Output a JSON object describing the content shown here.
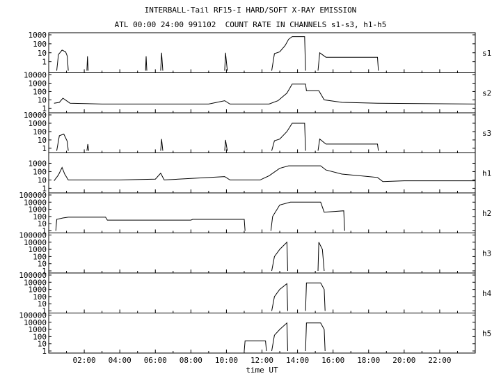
{
  "header": {
    "title": "INTERBALL-Tail RF15-I HARD/SOFT X-RAY EMISSION",
    "subtitle": "ATL 00:00 24:00 991102  COUNT RATE IN CHANNELS s1-s3, h1-h5"
  },
  "chart_data": {
    "type": "line",
    "title": "INTERBALL-Tail RF15-I HARD/SOFT X-RAY EMISSION",
    "subtitle": "ATL 00:00 24:00 991102  COUNT RATE IN CHANNELS s1-s3, h1-h5",
    "xlabel": "time UT",
    "xlim": [
      0,
      24
    ],
    "x_ticks": [
      2,
      4,
      6,
      8,
      10,
      12,
      14,
      16,
      18,
      20,
      22
    ],
    "x_tick_labels": [
      "02:00",
      "04:00",
      "06:00",
      "08:00",
      "10:00",
      "12:00",
      "14:00",
      "16:00",
      "18:00",
      "20:00",
      "22:00"
    ],
    "yscale": "log",
    "grid": false,
    "panels": [
      {
        "name": "s1",
        "ylim_exp": [
          -1,
          3
        ],
        "ytick_labels": [
          "1000",
          "100",
          "10",
          "1"
        ],
        "ytick_exp": [
          3,
          2,
          1,
          0
        ],
        "segments": [
          [
            [
              0.45,
              -1
            ],
            [
              0.55,
              0.8
            ],
            [
              0.75,
              1.3
            ],
            [
              0.95,
              1.1
            ],
            [
              1.05,
              0.6
            ],
            [
              1.1,
              -1
            ]
          ],
          [
            [
              2.15,
              -1
            ],
            [
              2.18,
              0.6
            ],
            [
              2.22,
              -1
            ]
          ],
          [
            [
              5.45,
              -1
            ],
            [
              5.48,
              0.6
            ],
            [
              5.52,
              -1
            ]
          ],
          [
            [
              6.3,
              -1
            ],
            [
              6.35,
              1.0
            ],
            [
              6.42,
              -1
            ]
          ],
          [
            [
              9.9,
              -1
            ],
            [
              9.95,
              1.0
            ],
            [
              10.05,
              -1
            ]
          ],
          [
            [
              12.55,
              -1
            ],
            [
              12.7,
              0.9
            ],
            [
              13.0,
              1.1
            ],
            [
              13.3,
              1.8
            ],
            [
              13.5,
              2.5
            ],
            [
              13.7,
              2.8
            ],
            [
              14.4,
              2.8
            ],
            [
              14.45,
              -1
            ]
          ],
          [
            [
              15.15,
              -1
            ],
            [
              15.25,
              1.0
            ],
            [
              15.6,
              0.5
            ],
            [
              16.5,
              0.5
            ],
            [
              17.5,
              0.5
            ],
            [
              18.5,
              0.5
            ],
            [
              18.55,
              -1
            ]
          ]
        ]
      },
      {
        "name": "s2",
        "ylim_exp": [
          -0.3,
          4
        ],
        "ytick_labels": [
          "10000",
          "1000",
          "100",
          "10",
          "1"
        ],
        "ytick_exp": [
          4,
          3,
          2,
          1,
          0
        ],
        "segments": [
          [
            [
              0.3,
              0.6
            ],
            [
              0.6,
              0.7
            ],
            [
              0.8,
              1.2
            ],
            [
              1.2,
              0.6
            ],
            [
              3,
              0.5
            ],
            [
              6,
              0.5
            ],
            [
              9,
              0.5
            ],
            [
              9.9,
              0.9
            ],
            [
              10.2,
              0.5
            ],
            [
              12.4,
              0.5
            ],
            [
              12.9,
              0.9
            ],
            [
              13.4,
              1.8
            ],
            [
              13.7,
              2.9
            ],
            [
              14.45,
              2.9
            ],
            [
              14.5,
              2.1
            ],
            [
              15.2,
              2.1
            ],
            [
              15.5,
              1.0
            ],
            [
              16.5,
              0.7
            ],
            [
              18.5,
              0.6
            ],
            [
              24,
              0.5
            ]
          ]
        ]
      },
      {
        "name": "s3",
        "ylim_exp": [
          -0.3,
          4
        ],
        "ytick_labels": [
          "10000",
          "1000",
          "100",
          "10",
          "1"
        ],
        "ytick_exp": [
          4,
          3,
          2,
          1,
          0
        ],
        "segments": [
          [
            [
              0.45,
              -0.3
            ],
            [
              0.6,
              1.5
            ],
            [
              0.85,
              1.7
            ],
            [
              1.05,
              0.8
            ],
            [
              1.1,
              -0.3
            ]
          ],
          [
            [
              2.15,
              -0.3
            ],
            [
              2.2,
              0.5
            ],
            [
              2.25,
              -0.3
            ]
          ],
          [
            [
              6.3,
              -0.3
            ],
            [
              6.35,
              1.1
            ],
            [
              6.42,
              -0.3
            ]
          ],
          [
            [
              9.9,
              -0.3
            ],
            [
              9.95,
              1.0
            ],
            [
              10.05,
              -0.3
            ]
          ],
          [
            [
              12.55,
              -0.3
            ],
            [
              12.7,
              0.9
            ],
            [
              13.0,
              1.1
            ],
            [
              13.4,
              2.0
            ],
            [
              13.7,
              3.0
            ],
            [
              14.4,
              3.0
            ],
            [
              14.45,
              -0.3
            ]
          ],
          [
            [
              15.15,
              -0.3
            ],
            [
              15.25,
              1.1
            ],
            [
              15.6,
              0.5
            ],
            [
              18.5,
              0.5
            ],
            [
              18.55,
              -0.3
            ]
          ]
        ]
      },
      {
        "name": "h1",
        "ylim_exp": [
          -0.3,
          4
        ],
        "ytick_labels": [
          "1000",
          "100",
          "10",
          "1"
        ],
        "ytick_exp": [
          3,
          2,
          1,
          0
        ],
        "segments": [
          [
            [
              0.3,
              0.9
            ],
            [
              0.55,
              1.6
            ],
            [
              0.75,
              2.5
            ],
            [
              0.9,
              1.7
            ],
            [
              1.1,
              1.0
            ],
            [
              2.0,
              1.0
            ],
            [
              4.0,
              1.0
            ],
            [
              6.0,
              1.1
            ],
            [
              6.3,
              1.8
            ],
            [
              6.5,
              1.0
            ],
            [
              9.9,
              1.4
            ],
            [
              10.2,
              1.0
            ],
            [
              11.9,
              1.0
            ],
            [
              12.4,
              1.5
            ],
            [
              13.0,
              2.4
            ],
            [
              13.5,
              2.7
            ],
            [
              15.3,
              2.7
            ],
            [
              15.6,
              2.2
            ],
            [
              16.5,
              1.7
            ],
            [
              18.5,
              1.3
            ],
            [
              18.8,
              0.8
            ],
            [
              20,
              0.9
            ],
            [
              24,
              0.9
            ]
          ]
        ]
      },
      {
        "name": "h2",
        "ylim_exp": [
          0,
          5
        ],
        "ytick_labels": [
          "100000",
          "10000",
          "1000",
          "100",
          "10",
          "1"
        ],
        "ytick_exp": [
          5,
          4,
          3,
          2,
          1,
          0
        ],
        "segments": [
          [
            [
              0.4,
              0
            ],
            [
              0.45,
              1.6
            ],
            [
              0.8,
              1.8
            ],
            [
              1.1,
              1.9
            ],
            [
              3.2,
              1.9
            ],
            [
              3.3,
              1.5
            ],
            [
              8.0,
              1.5
            ],
            [
              8.1,
              1.6
            ],
            [
              11.0,
              1.6
            ],
            [
              11.05,
              0
            ]
          ],
          [
            [
              12.5,
              0
            ],
            [
              12.6,
              2.0
            ],
            [
              13.0,
              3.6
            ],
            [
              13.6,
              4.0
            ],
            [
              15.3,
              4.0
            ],
            [
              15.5,
              2.6
            ],
            [
              16.6,
              2.8
            ],
            [
              16.65,
              0
            ]
          ]
        ]
      },
      {
        "name": "h3",
        "ylim_exp": [
          0,
          5
        ],
        "ytick_labels": [
          "100000",
          "10000",
          "1000",
          "100",
          "10",
          "1"
        ],
        "ytick_exp": [
          5,
          4,
          3,
          2,
          1,
          0
        ],
        "segments": [
          [
            [
              12.55,
              0
            ],
            [
              12.7,
              2.0
            ],
            [
              13.0,
              3.0
            ],
            [
              13.4,
              4.0
            ],
            [
              13.45,
              0
            ]
          ],
          [
            [
              15.15,
              0
            ],
            [
              15.2,
              4.0
            ],
            [
              15.4,
              3.0
            ],
            [
              15.5,
              0
            ]
          ]
        ]
      },
      {
        "name": "h4",
        "ylim_exp": [
          0,
          5
        ],
        "ytick_labels": [
          "100000",
          "10000",
          "1000",
          "100",
          "10",
          "1"
        ],
        "ytick_exp": [
          5,
          4,
          3,
          2,
          1,
          0
        ],
        "segments": [
          [
            [
              12.55,
              0
            ],
            [
              12.7,
              2.0
            ],
            [
              13.0,
              3.0
            ],
            [
              13.4,
              3.8
            ],
            [
              13.45,
              0
            ]
          ],
          [
            [
              14.45,
              0
            ],
            [
              14.5,
              3.9
            ],
            [
              15.3,
              3.9
            ],
            [
              15.5,
              3.0
            ],
            [
              15.55,
              0
            ]
          ]
        ]
      },
      {
        "name": "h5",
        "ylim_exp": [
          0,
          5
        ],
        "ytick_labels": [
          "100000",
          "10000",
          "1000",
          "100",
          "10",
          "1"
        ],
        "ytick_exp": [
          5,
          4,
          3,
          2,
          1,
          0
        ],
        "segments": [
          [
            [
              11.0,
              0
            ],
            [
              11.05,
              1.4
            ],
            [
              12.2,
              1.4
            ],
            [
              12.25,
              0
            ]
          ],
          [
            [
              12.55,
              0
            ],
            [
              12.7,
              2.2
            ],
            [
              13.0,
              3.0
            ],
            [
              13.4,
              3.9
            ],
            [
              13.45,
              0
            ]
          ],
          [
            [
              14.45,
              0
            ],
            [
              14.5,
              3.9
            ],
            [
              15.3,
              3.9
            ],
            [
              15.5,
              3.0
            ],
            [
              15.55,
              0
            ]
          ]
        ]
      }
    ]
  }
}
